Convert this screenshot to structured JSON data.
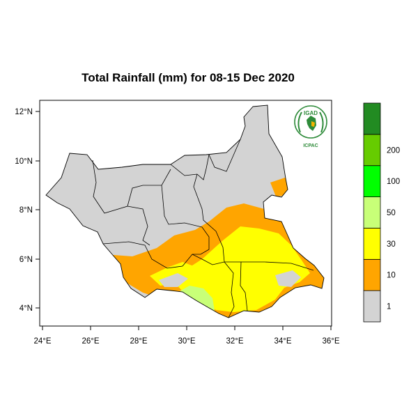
{
  "title": "Total Rainfall (mm) for 08-15 Dec 2020",
  "map": {
    "x_ticks": [
      "24°E",
      "26°E",
      "28°E",
      "30°E",
      "32°E",
      "34°E",
      "36°E"
    ],
    "y_ticks": [
      "12°N",
      "10°N",
      "8°N",
      "6°N",
      "4°N"
    ],
    "lon_range": [
      23.9,
      36.2
    ],
    "lat_range": [
      3.4,
      12.6
    ]
  },
  "logo": {
    "top_text": "IGAD",
    "bottom_text": "ICPAC",
    "color": "#2e8b3a"
  },
  "legend": {
    "levels": [
      {
        "label": "1",
        "color": "#d3d3d3"
      },
      {
        "label": "10",
        "color": "#ffa500"
      },
      {
        "label": "30",
        "color": "#ffff00"
      },
      {
        "label": "50",
        "color": "#c8ff78"
      },
      {
        "label": "100",
        "color": "#00ff00"
      },
      {
        "label": "200",
        "color": "#66cc00"
      },
      {
        "label": "",
        "color": "#228b22"
      }
    ]
  },
  "colors": {
    "no_rain": "#d3d3d3",
    "rain_1_10": "#ffa500",
    "rain_10_30": "#ffff00",
    "rain_30_50": "#c8ff78",
    "border": "#000000"
  }
}
